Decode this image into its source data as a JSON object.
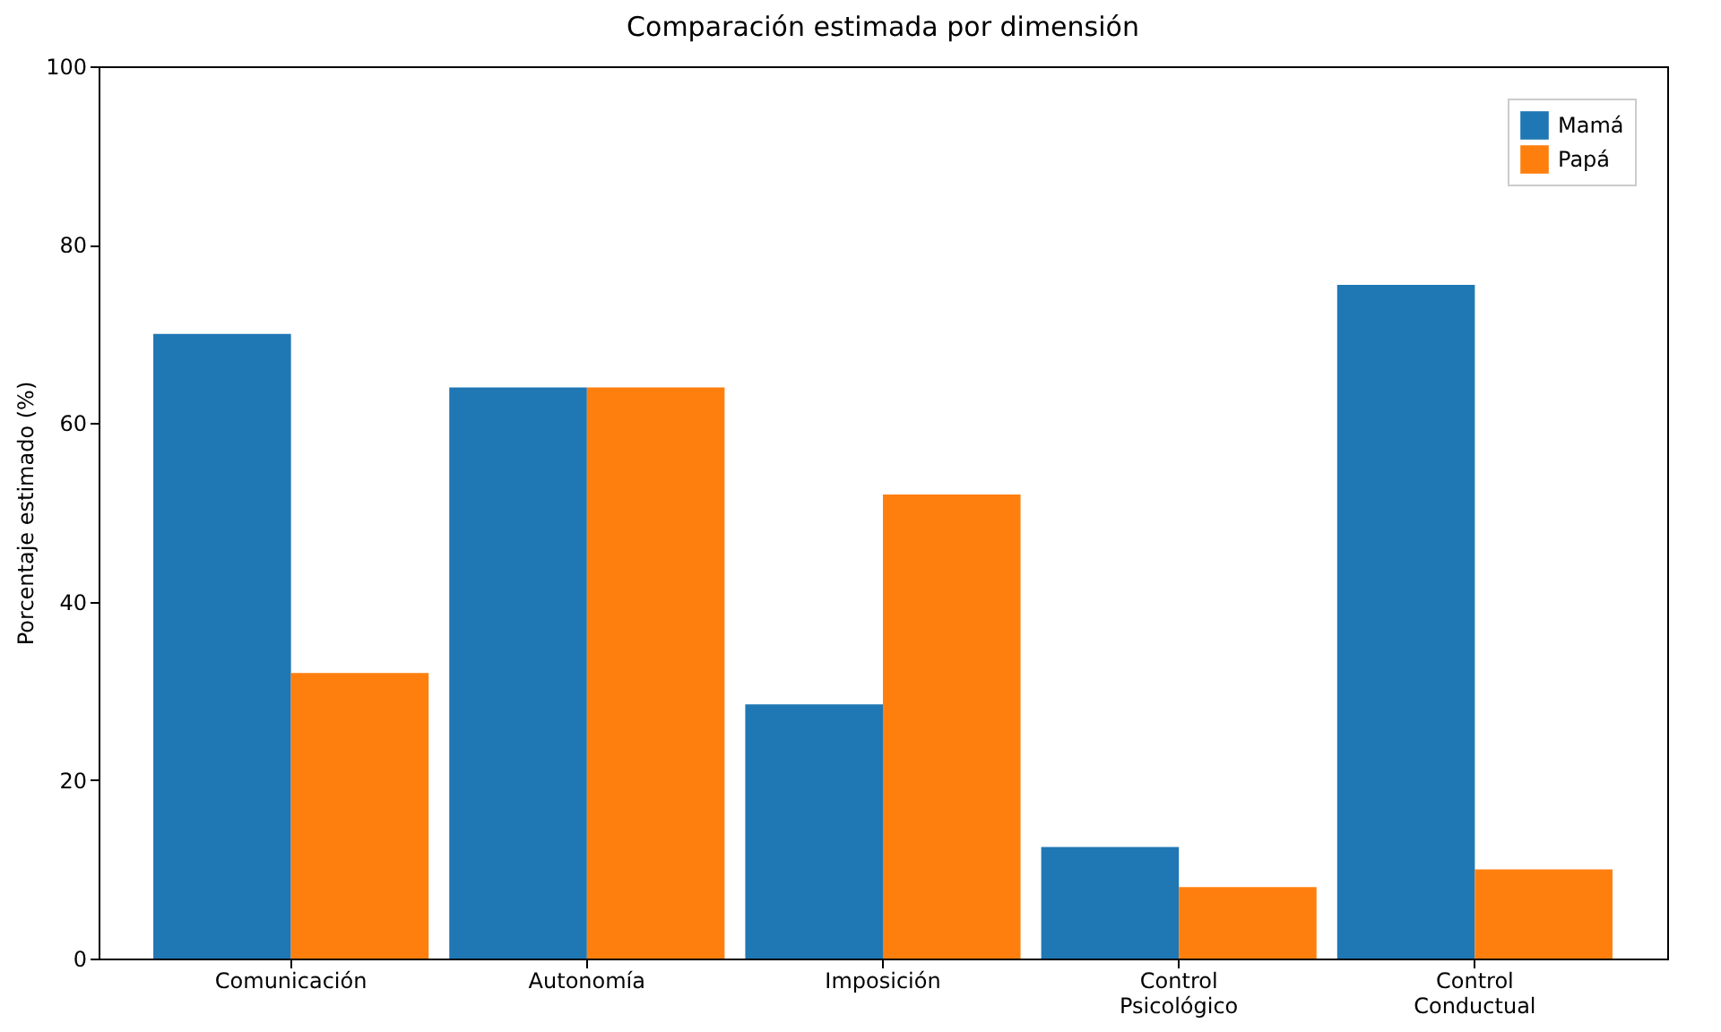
{
  "chart_data": {
    "type": "bar",
    "title": "Comparación estimada por dimensión",
    "ylabel": "Porcentaje estimado (%)",
    "categories": [
      "Comunicación",
      "Autonomía",
      "Imposición",
      "Control Psicológico",
      "Control Conductual"
    ],
    "series": [
      {
        "name": "Mamá",
        "color": "#1f77b4",
        "values": [
          70,
          64,
          28.5,
          12.5,
          75.5
        ]
      },
      {
        "name": "Papá",
        "color": "#ff7f0e",
        "values": [
          32,
          64,
          52,
          8,
          10
        ]
      }
    ],
    "ylim": [
      0,
      100
    ],
    "yticks": [
      0,
      20,
      40,
      60,
      80,
      100
    ],
    "grid": false,
    "legend": "top right"
  }
}
